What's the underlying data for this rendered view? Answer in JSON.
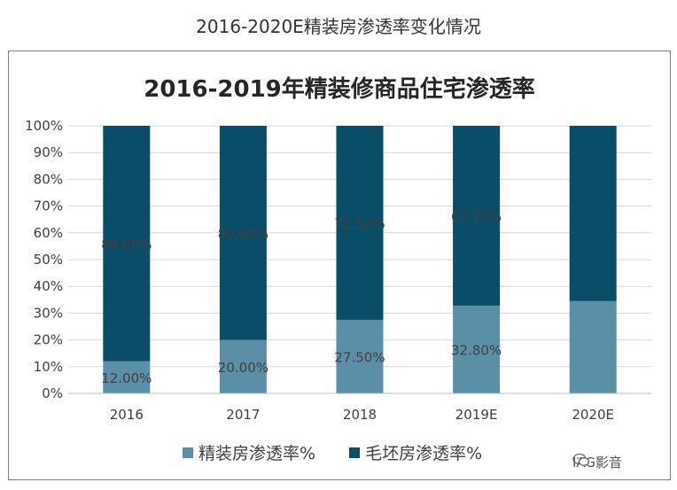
{
  "page": {
    "title": "2016-2020E精装房渗透率变化情况"
  },
  "watermark": {
    "text": "IAG影音",
    "icon": "wechat-icon"
  },
  "chart_data": {
    "type": "bar",
    "stacked": true,
    "title": "2016-2019年精装修商品住宅渗透率",
    "xlabel": "",
    "ylabel": "",
    "categories": [
      "2016",
      "2017",
      "2018",
      "2019E",
      "2020E"
    ],
    "ylim": [
      0,
      100
    ],
    "yticks": [
      "0%",
      "10%",
      "20%",
      "30%",
      "40%",
      "50%",
      "60%",
      "70%",
      "80%",
      "90%",
      "100%"
    ],
    "grid": true,
    "legend_position": "bottom",
    "series": [
      {
        "name": "精装房渗透率%",
        "color": "#5b8fa8",
        "values": [
          12.0,
          20.0,
          27.5,
          32.8,
          34.5
        ],
        "labels": [
          "12.00%",
          "20.00%",
          "27.50%",
          "32.80%",
          ""
        ]
      },
      {
        "name": "毛坯房渗透率%",
        "color": "#0a4d68",
        "values": [
          88.0,
          80.0,
          72.5,
          67.2,
          65.5
        ],
        "labels": [
          "88.00%",
          "80.00%",
          "72.50%",
          "67.20%",
          ""
        ]
      }
    ]
  }
}
